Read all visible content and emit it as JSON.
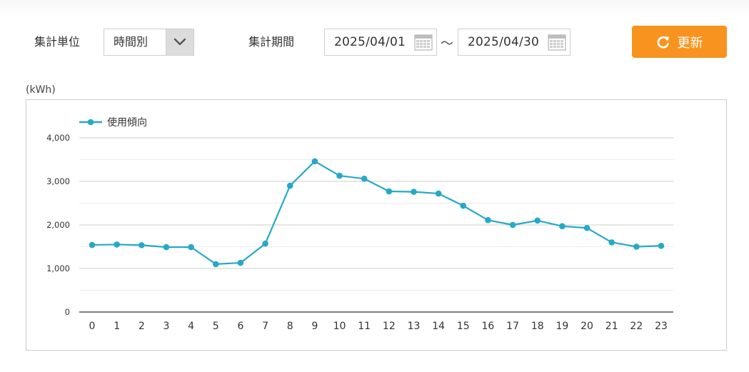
{
  "filters": {
    "unit_label": "集計単位",
    "unit_value": "時間別",
    "period_label": "集計期間",
    "start_date": "2025/04/01",
    "separator": "〜",
    "end_date": "2025/04/30",
    "update_label": "更新"
  },
  "icons": {
    "dropdown": "chevron-down-icon",
    "calendar": "calendar-icon",
    "refresh": "refresh-icon"
  },
  "colors": {
    "accent": "#f7931e",
    "series": "#26a9c7"
  },
  "chart_data": {
    "type": "line",
    "unit": "(kWh)",
    "categories": [
      "0",
      "1",
      "2",
      "3",
      "4",
      "5",
      "6",
      "7",
      "8",
      "9",
      "10",
      "11",
      "12",
      "13",
      "14",
      "15",
      "16",
      "17",
      "18",
      "19",
      "20",
      "21",
      "22",
      "23"
    ],
    "series": [
      {
        "name": "使用傾向",
        "values": [
          1540,
          1550,
          1535,
          1490,
          1490,
          1100,
          1130,
          1570,
          2900,
          3460,
          3130,
          3060,
          2770,
          2760,
          2720,
          2440,
          2110,
          2000,
          2100,
          1970,
          1930,
          1600,
          1500,
          1520
        ]
      }
    ],
    "yticks": [
      "0",
      "1,000",
      "2,000",
      "3,000",
      "4,000"
    ],
    "ylim": [
      0,
      4000
    ],
    "grid": true,
    "legend": "top-left"
  }
}
